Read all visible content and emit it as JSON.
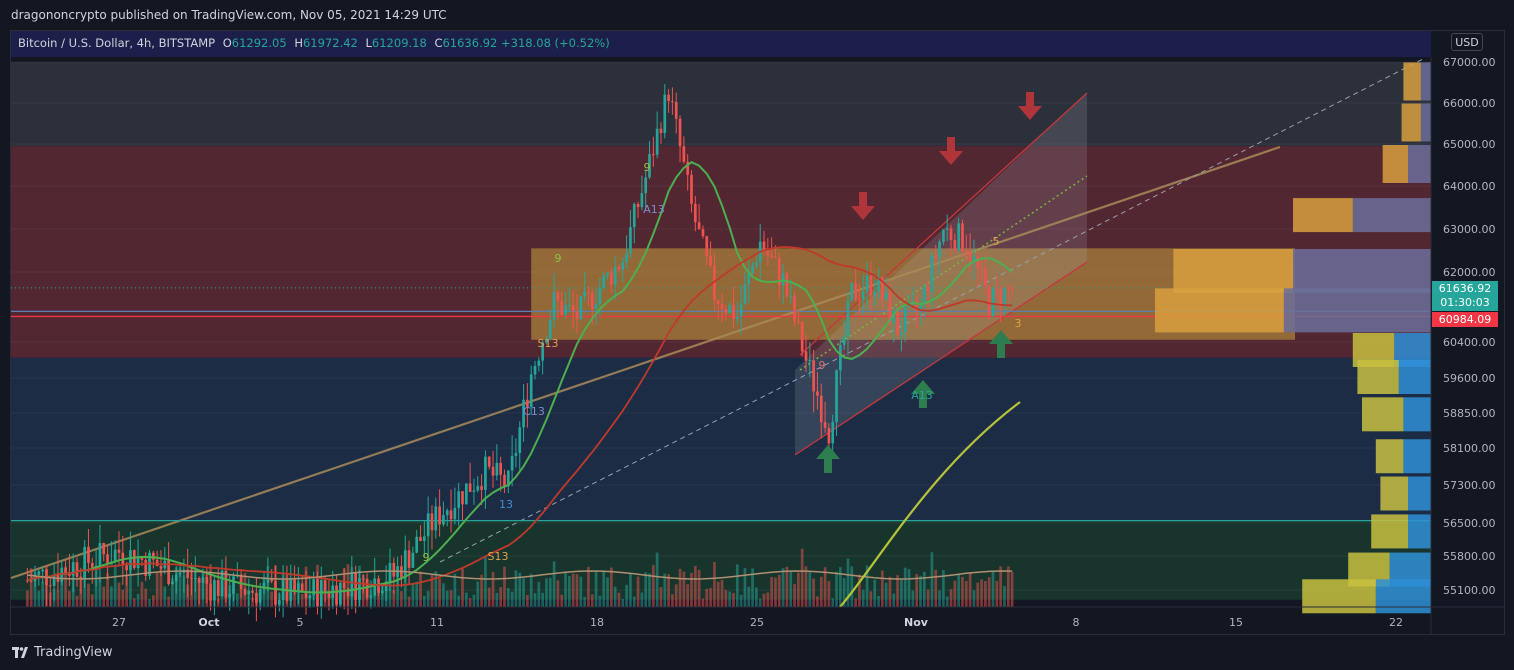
{
  "header": {
    "published": "dragononcrypto published on TradingView.com, Nov 05, 2021 14:29 UTC"
  },
  "legend": {
    "symbol": "Bitcoin / U.S. Dollar, 4h, BITSTAMP",
    "open_label": "O",
    "open": "61292.05",
    "high_label": "H",
    "high": "61972.42",
    "low_label": "L",
    "low": "61209.18",
    "close_label": "C",
    "close": "61636.92",
    "change": "+318.08 (+0.52%)"
  },
  "currency_button": "USD",
  "price_tags": {
    "current_price": "61636.92",
    "countdown": "01:30:03",
    "red_line_price": "60984.09"
  },
  "colors": {
    "background": "#131722",
    "up_candle": "#26a69a",
    "down_candle": "#ef5350",
    "red_zone": "#6b2c33",
    "yellow_zone": "#b8963a",
    "green_zone": "#1e4a3a",
    "blue_zone": "#1b2a44"
  },
  "chart_data": {
    "type": "candlestick",
    "y_axis_ticks": [
      "67000.00",
      "66000.00",
      "65000.00",
      "64000.00",
      "63000.00",
      "62000.00",
      "60400.00",
      "59600.00",
      "58850.00",
      "58100.00",
      "57300.00",
      "56500.00",
      "55800.00",
      "55100.00"
    ],
    "x_axis_ticks": [
      {
        "label": "27",
        "bold": false
      },
      {
        "label": "Oct",
        "bold": true
      },
      {
        "label": "5",
        "bold": false
      },
      {
        "label": "11",
        "bold": false
      },
      {
        "label": "18",
        "bold": false
      },
      {
        "label": "25",
        "bold": false
      },
      {
        "label": "Nov",
        "bold": true
      },
      {
        "label": "8",
        "bold": false
      },
      {
        "label": "15",
        "bold": false
      },
      {
        "label": "22",
        "bold": false
      }
    ],
    "horizontal_lines": [
      {
        "price": 60984.09,
        "color": "#f23645"
      },
      {
        "price": 61100,
        "color": "#5d7fb0"
      },
      {
        "price": 56550,
        "color": "#26a69a"
      }
    ],
    "zones": [
      {
        "from": 64950,
        "to": 67000,
        "color": "gray"
      },
      {
        "from": 60050,
        "to": 64950,
        "color": "red"
      },
      {
        "from": 60450,
        "to": 62550,
        "color": "yellow"
      },
      {
        "from": 56550,
        "to": 60050,
        "color": "blue"
      },
      {
        "from": 54900,
        "to": 56550,
        "color": "green"
      }
    ],
    "close_path": [
      {
        "x": "Sep 23",
        "y": 55300
      },
      {
        "x": "Sep 27",
        "y": 55900
      },
      {
        "x": "Oct 1",
        "y": 55200
      },
      {
        "x": "Oct 5",
        "y": 55000
      },
      {
        "x": "Oct 9",
        "y": 55400
      },
      {
        "x": "Oct 11",
        "y": 56700
      },
      {
        "x": "Oct 13",
        "y": 57600
      },
      {
        "x": "Oct 14",
        "y": 57300
      },
      {
        "x": "Oct 15",
        "y": 59700
      },
      {
        "x": "Oct 16",
        "y": 61300
      },
      {
        "x": "Oct 17",
        "y": 61000
      },
      {
        "x": "Oct 19",
        "y": 62300
      },
      {
        "x": "Oct 20",
        "y": 64200
      },
      {
        "x": "Oct 21",
        "y": 66300
      },
      {
        "x": "Oct 22",
        "y": 63500
      },
      {
        "x": "Oct 23",
        "y": 61500
      },
      {
        "x": "Oct 24",
        "y": 61000
      },
      {
        "x": "Oct 25",
        "y": 62700
      },
      {
        "x": "Oct 26",
        "y": 61800
      },
      {
        "x": "Oct 27",
        "y": 60000
      },
      {
        "x": "Oct 28",
        "y": 58500
      },
      {
        "x": "Oct 29",
        "y": 61500
      },
      {
        "x": "Oct 30",
        "y": 61800
      },
      {
        "x": "Oct 31",
        "y": 60700
      },
      {
        "x": "Nov 1",
        "y": 61200
      },
      {
        "x": "Nov 2",
        "y": 63000
      },
      {
        "x": "Nov 3",
        "y": 62700
      },
      {
        "x": "Nov 4",
        "y": 61300
      },
      {
        "x": "Nov 5",
        "y": 61637
      }
    ],
    "annotations": [
      {
        "text": "9"
      },
      {
        "text": "A13"
      },
      {
        "text": "9"
      },
      {
        "text": "S13"
      },
      {
        "text": "C13"
      },
      {
        "text": "13"
      },
      {
        "text": "9"
      },
      {
        "text": "S13"
      },
      {
        "text": "9"
      },
      {
        "text": "A13"
      },
      {
        "text": "5"
      },
      {
        "text": "3"
      }
    ],
    "arrows": [
      {
        "direction": "down",
        "color": "red"
      },
      {
        "direction": "down",
        "color": "red"
      },
      {
        "direction": "down",
        "color": "red"
      },
      {
        "direction": "up",
        "color": "green"
      },
      {
        "direction": "up",
        "color": "green"
      },
      {
        "direction": "up",
        "color": "green"
      }
    ],
    "volume_profile": [
      {
        "level": "66500",
        "a": 0.38,
        "b": 0.22
      },
      {
        "level": "65500",
        "a": 0.42,
        "b": 0.22
      },
      {
        "level": "64500",
        "a": 0.55,
        "b": 0.5
      },
      {
        "level": "63300",
        "a": 1.3,
        "b": 1.7
      },
      {
        "level": "62000",
        "a": 2.6,
        "b": 3.0
      },
      {
        "level": "61100",
        "a": 2.8,
        "b": 3.2
      },
      {
        "level": "60200",
        "a": 0.9,
        "b": 0.8
      },
      {
        "level": "59600",
        "a": 0.9,
        "b": 0.7
      },
      {
        "level": "58800",
        "a": 0.9,
        "b": 0.6
      },
      {
        "level": "57900",
        "a": 0.6,
        "b": 0.6
      },
      {
        "level": "57100",
        "a": 0.6,
        "b": 0.5
      },
      {
        "level": "56300",
        "a": 0.8,
        "b": 0.5
      },
      {
        "level": "55500",
        "a": 0.9,
        "b": 0.9
      },
      {
        "level": "54950",
        "a": 1.6,
        "b": 1.2
      }
    ]
  },
  "footer": {
    "brand": "TradingView"
  }
}
